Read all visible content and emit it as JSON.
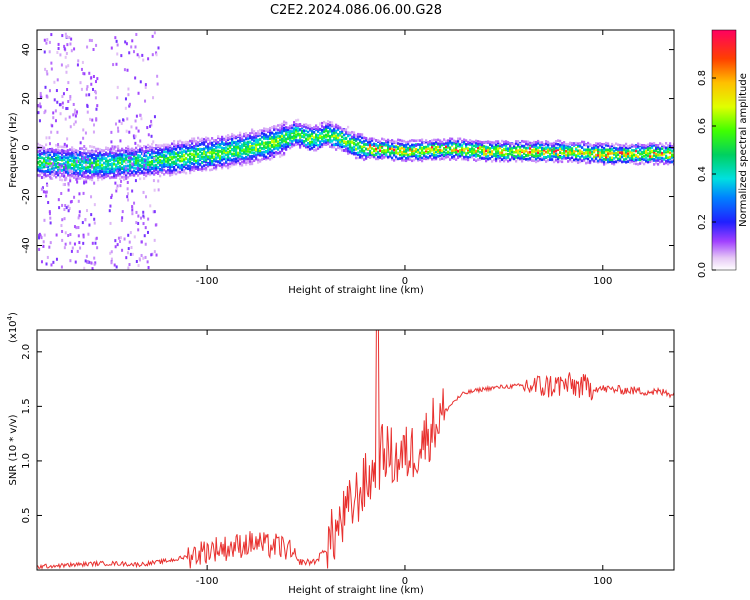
{
  "title": "C2E2.2024.086.06.00.G28",
  "chart_data": [
    {
      "type": "heatmap",
      "xlabel": "Height of straight line (km)",
      "ylabel": "Frequency (Hz)",
      "xlim": [
        -186,
        136
      ],
      "ylim": [
        -50,
        48
      ],
      "xticks": [
        -100,
        0,
        100
      ],
      "yticks": [
        -40,
        -20,
        0,
        20,
        40
      ],
      "colorbar": {
        "label": "Normalized spectral amplitude",
        "range": [
          0.0,
          1.0
        ],
        "ticks": [
          0.0,
          0.2,
          0.4,
          0.6,
          0.8
        ]
      },
      "ridge": {
        "x": [
          -186,
          -170,
          -150,
          -130,
          -110,
          -90,
          -70,
          -55,
          -48,
          -40,
          -32,
          -25,
          -18,
          -10,
          0,
          20,
          50,
          80,
          100,
          136
        ],
        "frequency": [
          -5,
          -6,
          -6,
          -5,
          -3,
          -1,
          2,
          6,
          4,
          6,
          4,
          1,
          0,
          0,
          -1,
          0,
          -1,
          -1,
          -2,
          -2
        ]
      },
      "grid": false
    },
    {
      "type": "line",
      "xlabel": "Height of straight line (km)",
      "ylabel": "SNR (10 * v/v)",
      "y_multiplier": "(x10",
      "y_multiplier_exp": "4",
      "y_multiplier_close": ")",
      "xlim": [
        -186,
        136
      ],
      "ylim": [
        0.0,
        2.2
      ],
      "xticks": [
        -100,
        0,
        100
      ],
      "yticks": [
        0.5,
        1.0,
        1.5,
        2.0
      ],
      "y_tick_labels": [
        "0.5",
        "1.0",
        "1.5",
        "2.0"
      ],
      "series": [
        {
          "color": "#e8312f",
          "x": [
            -186,
            -175,
            -165,
            -155,
            -145,
            -135,
            -125,
            -115,
            -105,
            -100,
            -95,
            -90,
            -85,
            -80,
            -75,
            -70,
            -65,
            -60,
            -55,
            -50,
            -45,
            -40,
            -35,
            -30,
            -25,
            -20,
            -15,
            -12,
            -10,
            -5,
            0,
            5,
            10,
            15,
            20,
            25,
            30,
            40,
            50,
            60,
            70,
            80,
            90,
            100,
            110,
            120,
            136
          ],
          "y": [
            0.03,
            0.04,
            0.05,
            0.06,
            0.06,
            0.05,
            0.07,
            0.1,
            0.15,
            0.18,
            0.2,
            0.2,
            0.22,
            0.24,
            0.25,
            0.22,
            0.22,
            0.2,
            0.08,
            0.07,
            0.08,
            0.2,
            0.35,
            0.5,
            0.65,
            0.8,
            0.9,
            1.05,
            1.1,
            1.0,
            1.05,
            1.1,
            1.2,
            1.35,
            1.45,
            1.55,
            1.62,
            1.66,
            1.68,
            1.69,
            1.68,
            1.7,
            1.68,
            1.66,
            1.65,
            1.64,
            1.62
          ]
        }
      ],
      "grid": false
    }
  ]
}
